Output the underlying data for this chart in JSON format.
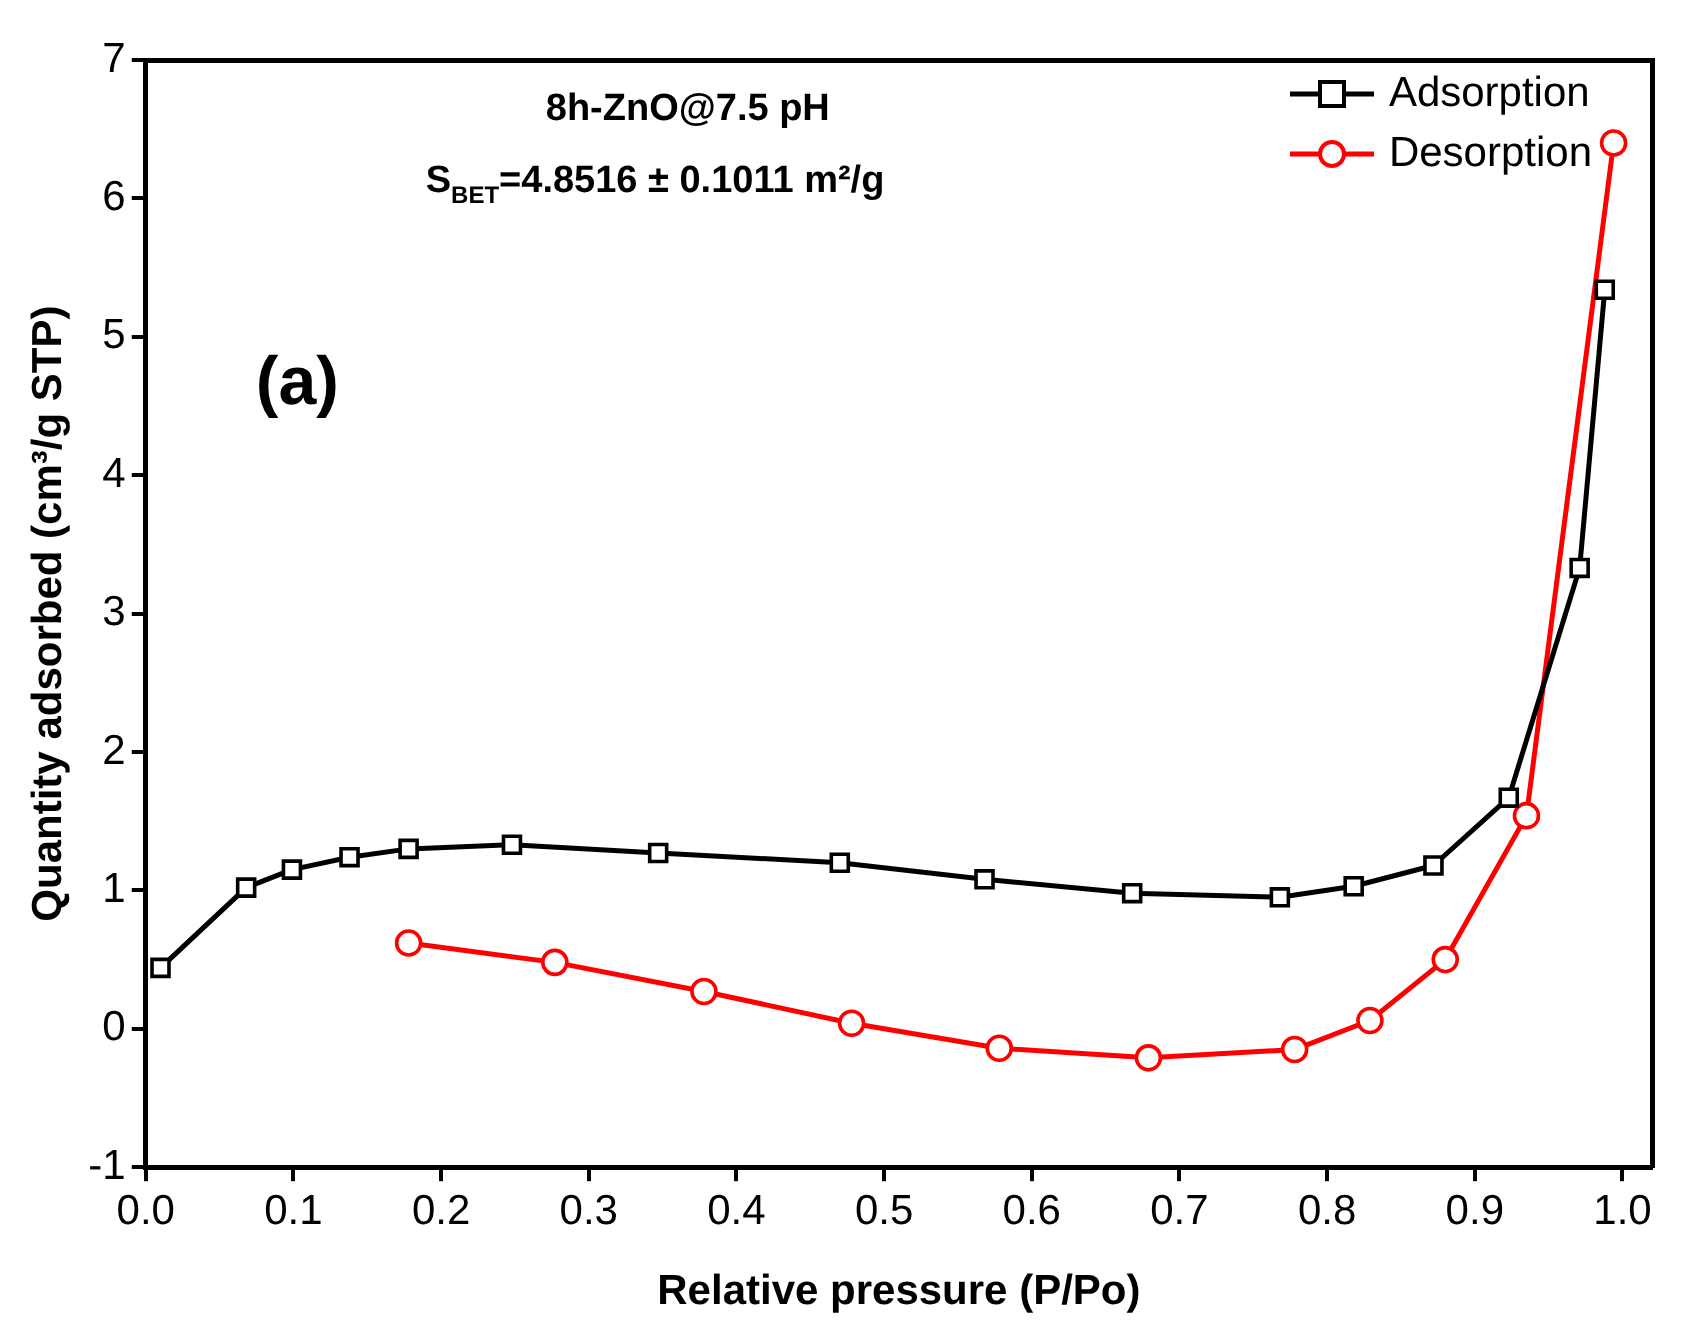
{
  "chart_data": {
    "type": "line",
    "xlabel": "Relative pressure (P/Po)",
    "ylabel": "Quantity adsorbed (cm³/g STP)",
    "annotations": [
      "8h-ZnO@7.5 pH",
      "S$_{BET}$=4.8516 ± 0.1011 m²/g",
      "(a)"
    ],
    "series": [
      {
        "name": "Adsorption",
        "color": "#000000",
        "marker": "square",
        "x": [
          0.01,
          0.068,
          0.099,
          0.138,
          0.178,
          0.248,
          0.347,
          0.47,
          0.568,
          0.668,
          0.768,
          0.818,
          0.872,
          0.923,
          0.971,
          0.988
        ],
        "values": [
          0.44,
          1.02,
          1.15,
          1.24,
          1.3,
          1.33,
          1.27,
          1.2,
          1.08,
          0.98,
          0.95,
          1.03,
          1.18,
          1.67,
          3.33,
          5.34
        ]
      },
      {
        "name": "Desorption",
        "color": "#ff0000",
        "marker": "circle",
        "x": [
          0.178,
          0.277,
          0.378,
          0.478,
          0.578,
          0.679,
          0.778,
          0.829,
          0.88,
          0.935,
          0.994
        ],
        "values": [
          0.62,
          0.48,
          0.27,
          0.04,
          -0.14,
          -0.21,
          -0.15,
          0.06,
          0.5,
          1.54,
          6.4
        ]
      }
    ],
    "xlim": [
      0,
      1.02
    ],
    "xticks": [
      {
        "value": 0,
        "label": "0.0"
      },
      0.1,
      0.2,
      0.3,
      0.4,
      0.5,
      0.6,
      0.7,
      0.8,
      0.9,
      {
        "value": 1,
        "label": "1.0"
      }
    ],
    "ylim": [
      -1,
      7
    ],
    "yticks": [
      -1,
      0,
      1,
      2,
      3,
      4,
      5,
      6,
      7
    ],
    "grid": false,
    "legend": "top right",
    "line_style": "solid"
  }
}
